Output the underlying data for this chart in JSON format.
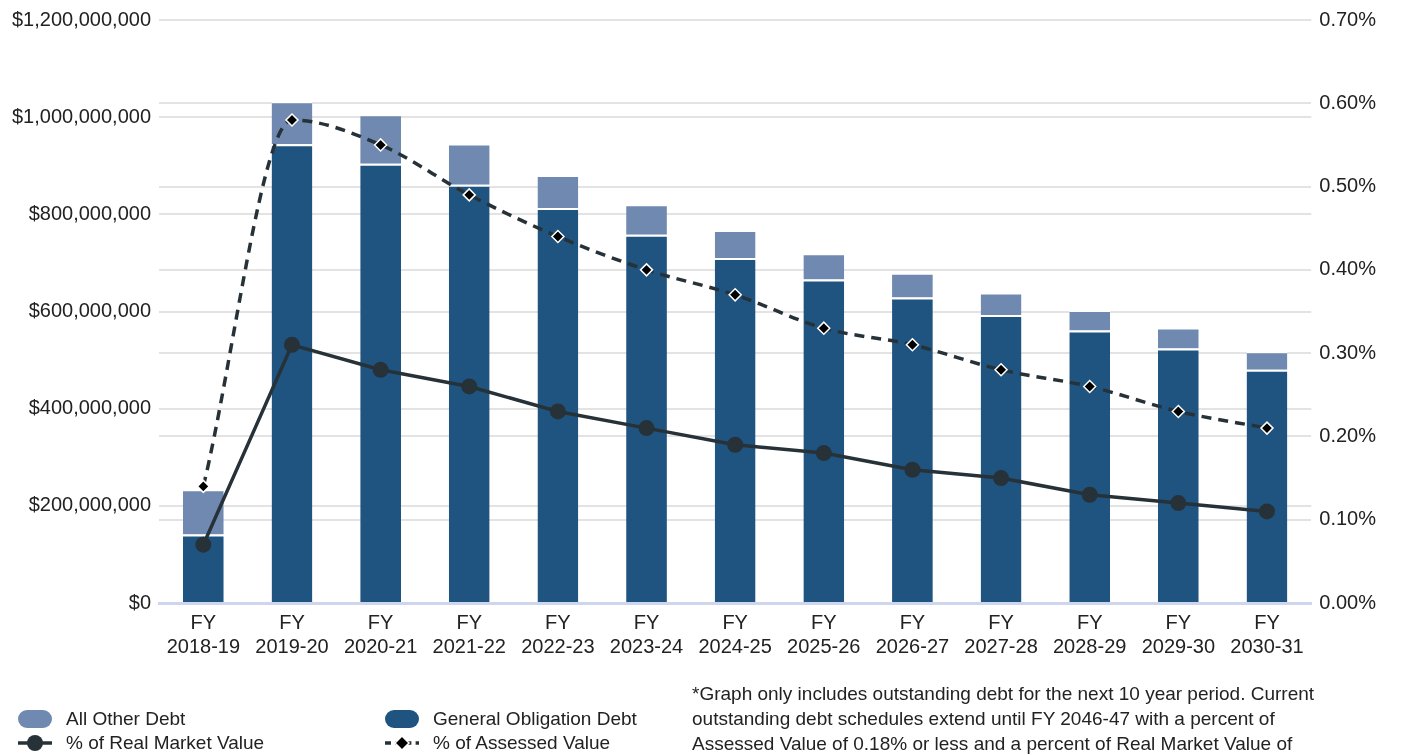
{
  "chart_data": {
    "type": "bar",
    "stacked": true,
    "categories": [
      "FY 2018-19",
      "FY 2019-20",
      "FY 2020-21",
      "FY 2021-22",
      "FY 2022-23",
      "FY 2023-24",
      "FY 2024-25",
      "FY 2025-26",
      "FY 2026-27",
      "FY 2027-28",
      "FY 2028-29",
      "FY 2029-30",
      "FY 2030-31"
    ],
    "series": [
      {
        "name": "General Obligation Debt",
        "color": "#1f5481",
        "values": [
          141000000,
          944000000,
          904000000,
          861000000,
          813000000,
          758000000,
          710000000,
          666000000,
          629000000,
          593000000,
          561000000,
          524000000,
          480000000
        ]
      },
      {
        "name": "All Other Debt",
        "color": "#6f89b0",
        "values": [
          93000000,
          89000000,
          102000000,
          85000000,
          68000000,
          63000000,
          58000000,
          54000000,
          51000000,
          46000000,
          42000000,
          43000000,
          38000000
        ]
      },
      {
        "name": "% of Real Market Value",
        "type": "line",
        "axis": "y2",
        "color": "#263238",
        "marker": "circle",
        "line_style": "solid",
        "values": [
          0.07,
          0.31,
          0.28,
          0.26,
          0.23,
          0.21,
          0.19,
          0.18,
          0.16,
          0.15,
          0.13,
          0.12,
          0.11
        ]
      },
      {
        "name": "% of Assessed Value",
        "type": "line",
        "axis": "y2",
        "color": "#263238",
        "marker": "diamond",
        "line_style": "dashed",
        "values": [
          0.14,
          0.58,
          0.55,
          0.49,
          0.44,
          0.4,
          0.37,
          0.33,
          0.31,
          0.28,
          0.26,
          0.23,
          0.21
        ]
      }
    ],
    "ylim": [
      0,
      1200000000
    ],
    "yticks": [
      {
        "value": 0,
        "label": "$0"
      },
      {
        "value": 200000000,
        "label": "$200,000,000"
      },
      {
        "value": 400000000,
        "label": "$400,000,000"
      },
      {
        "value": 600000000,
        "label": "$600,000,000"
      },
      {
        "value": 800000000,
        "label": "$800,000,000"
      },
      {
        "value": 1000000000,
        "label": "$1,000,000,000"
      },
      {
        "value": 1200000000,
        "label": "$1,200,000,000"
      }
    ],
    "y2lim": [
      0,
      0.7
    ],
    "y2ticks": [
      {
        "value": 0,
        "label": "0.00%"
      },
      {
        "value": 0.1,
        "label": "0.10%"
      },
      {
        "value": 0.2,
        "label": "0.20%"
      },
      {
        "value": 0.3,
        "label": "0.30%"
      },
      {
        "value": 0.4,
        "label": "0.40%"
      },
      {
        "value": 0.5,
        "label": "0.50%"
      },
      {
        "value": 0.6,
        "label": "0.60%"
      },
      {
        "value": 0.7,
        "label": "0.70%"
      }
    ],
    "grid": "y",
    "legend": "bottom left",
    "annotations": [
      "*Graph only includes outstanding debt for the next 10 year period. Current outstanding debt schedules extend until FY 2046-47 with a percent of Assessed Value of 0.18% or less and a percent of Real Market Value of"
    ]
  }
}
